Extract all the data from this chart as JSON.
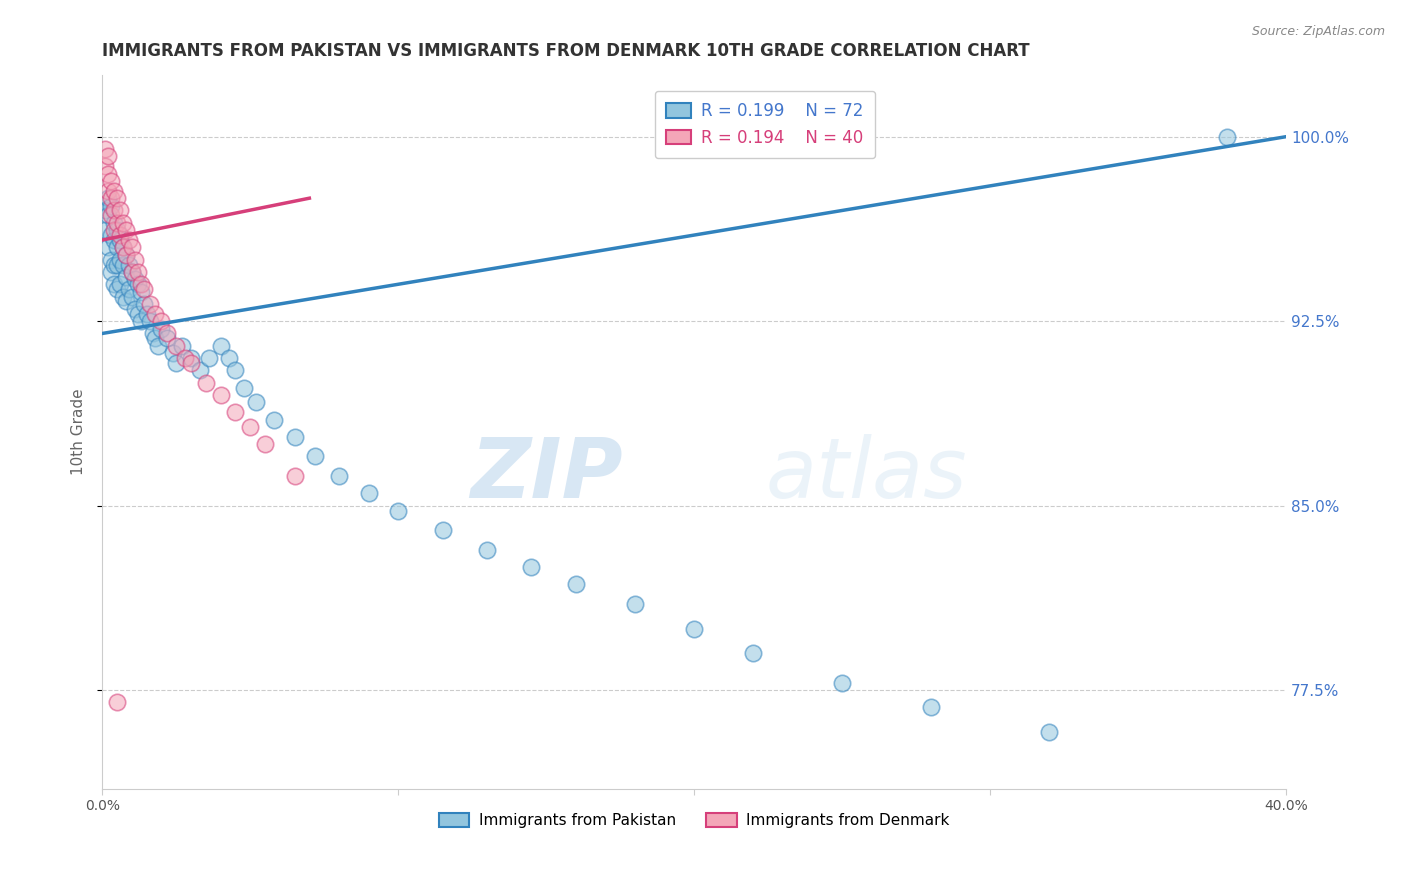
{
  "title": "IMMIGRANTS FROM PAKISTAN VS IMMIGRANTS FROM DENMARK 10TH GRADE CORRELATION CHART",
  "source": "Source: ZipAtlas.com",
  "ylabel": "10th Grade",
  "xmin": 0.0,
  "xmax": 0.4,
  "ymin": 0.735,
  "ymax": 1.025,
  "yticks": [
    0.775,
    0.85,
    0.925,
    1.0
  ],
  "ytick_labels": [
    "77.5%",
    "85.0%",
    "92.5%",
    "100.0%"
  ],
  "dashed_yticks": [
    0.775,
    0.85,
    0.925,
    1.0
  ],
  "r_pakistan": 0.199,
  "n_pakistan": 72,
  "r_denmark": 0.194,
  "n_denmark": 40,
  "color_pakistan": "#92c5de",
  "color_denmark": "#f4a6b8",
  "color_pakistan_line": "#3182bd",
  "color_denmark_line": "#d63f7a",
  "legend_label_pakistan": "Immigrants from Pakistan",
  "legend_label_denmark": "Immigrants from Denmark",
  "pakistan_x": [
    0.001,
    0.001,
    0.002,
    0.002,
    0.002,
    0.003,
    0.003,
    0.003,
    0.003,
    0.004,
    0.004,
    0.004,
    0.004,
    0.005,
    0.005,
    0.005,
    0.005,
    0.006,
    0.006,
    0.006,
    0.007,
    0.007,
    0.007,
    0.008,
    0.008,
    0.008,
    0.009,
    0.009,
    0.01,
    0.01,
    0.011,
    0.011,
    0.012,
    0.012,
    0.013,
    0.013,
    0.014,
    0.015,
    0.016,
    0.017,
    0.018,
    0.019,
    0.02,
    0.022,
    0.024,
    0.025,
    0.027,
    0.03,
    0.033,
    0.036,
    0.04,
    0.043,
    0.045,
    0.048,
    0.052,
    0.058,
    0.065,
    0.072,
    0.08,
    0.09,
    0.1,
    0.115,
    0.13,
    0.145,
    0.16,
    0.18,
    0.2,
    0.22,
    0.25,
    0.28,
    0.32,
    0.38
  ],
  "pakistan_y": [
    0.97,
    0.962,
    0.975,
    0.968,
    0.955,
    0.972,
    0.96,
    0.95,
    0.945,
    0.965,
    0.958,
    0.948,
    0.94,
    0.962,
    0.955,
    0.948,
    0.938,
    0.958,
    0.95,
    0.94,
    0.955,
    0.948,
    0.935,
    0.952,
    0.943,
    0.933,
    0.948,
    0.938,
    0.945,
    0.935,
    0.942,
    0.93,
    0.94,
    0.928,
    0.937,
    0.925,
    0.932,
    0.928,
    0.925,
    0.92,
    0.918,
    0.915,
    0.922,
    0.918,
    0.912,
    0.908,
    0.915,
    0.91,
    0.905,
    0.91,
    0.915,
    0.91,
    0.905,
    0.898,
    0.892,
    0.885,
    0.878,
    0.87,
    0.862,
    0.855,
    0.848,
    0.84,
    0.832,
    0.825,
    0.818,
    0.81,
    0.8,
    0.79,
    0.778,
    0.768,
    0.758,
    1.0
  ],
  "denmark_x": [
    0.001,
    0.001,
    0.002,
    0.002,
    0.002,
    0.003,
    0.003,
    0.003,
    0.004,
    0.004,
    0.004,
    0.005,
    0.005,
    0.006,
    0.006,
    0.007,
    0.007,
    0.008,
    0.008,
    0.009,
    0.01,
    0.01,
    0.011,
    0.012,
    0.013,
    0.014,
    0.016,
    0.018,
    0.02,
    0.022,
    0.025,
    0.028,
    0.03,
    0.035,
    0.04,
    0.045,
    0.05,
    0.055,
    0.065,
    0.005
  ],
  "denmark_y": [
    0.988,
    0.995,
    0.985,
    0.978,
    0.992,
    0.982,
    0.975,
    0.968,
    0.978,
    0.97,
    0.962,
    0.975,
    0.965,
    0.97,
    0.96,
    0.965,
    0.955,
    0.962,
    0.952,
    0.958,
    0.955,
    0.945,
    0.95,
    0.945,
    0.94,
    0.938,
    0.932,
    0.928,
    0.925,
    0.92,
    0.915,
    0.91,
    0.908,
    0.9,
    0.895,
    0.888,
    0.882,
    0.875,
    0.862,
    0.77
  ],
  "watermark_zip": "ZIP",
  "watermark_atlas": "atlas",
  "background_color": "#ffffff",
  "title_color": "#333333",
  "axis_label_color": "#666666",
  "right_tick_color": "#4477cc",
  "trendline_pakistan_x0": 0.0,
  "trendline_pakistan_x1": 0.4,
  "trendline_pakistan_y0": 0.92,
  "trendline_pakistan_y1": 1.0,
  "trendline_denmark_x0": 0.0,
  "trendline_denmark_x1": 0.07,
  "trendline_denmark_y0": 0.958,
  "trendline_denmark_y1": 0.975
}
